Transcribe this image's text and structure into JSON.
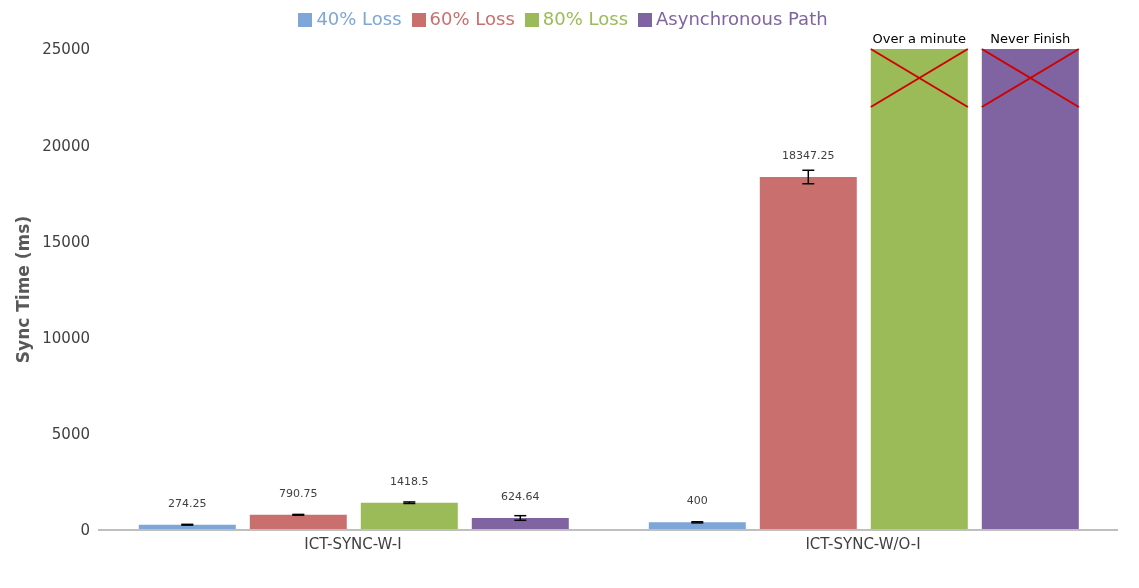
{
  "chart_data": {
    "type": "bar",
    "categories": [
      "ICT-SYNC-W-I",
      "ICT-SYNC-W/O-I"
    ],
    "ylabel": "Sync Time (ms)",
    "ylim": [
      0,
      25000
    ],
    "yticks": [
      0,
      5000,
      10000,
      15000,
      20000,
      25000
    ],
    "grid": false,
    "legend": "top",
    "series": [
      {
        "name": "40% Loss",
        "color": "#7ea6d8",
        "values": [
          274.25,
          400
        ],
        "errors": [
          20,
          30
        ],
        "value_labels": [
          "274.25",
          "400"
        ]
      },
      {
        "name": "60% Loss",
        "color": "#c9706f",
        "values": [
          790.75,
          18347.25
        ],
        "errors": [
          20,
          350
        ],
        "value_labels": [
          "790.75",
          "18347.25"
        ]
      },
      {
        "name": "80% Loss",
        "color": "#9bbb59",
        "values": [
          1418.5,
          25000
        ],
        "errors": [
          40,
          null
        ],
        "value_labels": [
          "1418.5",
          "Over a minute"
        ]
      },
      {
        "name": "Asynchronous Path",
        "color": "#8064a2",
        "values": [
          624.64,
          25000
        ],
        "errors": [
          120,
          null
        ],
        "value_labels": [
          "624.64",
          "Never Finish"
        ]
      }
    ]
  }
}
